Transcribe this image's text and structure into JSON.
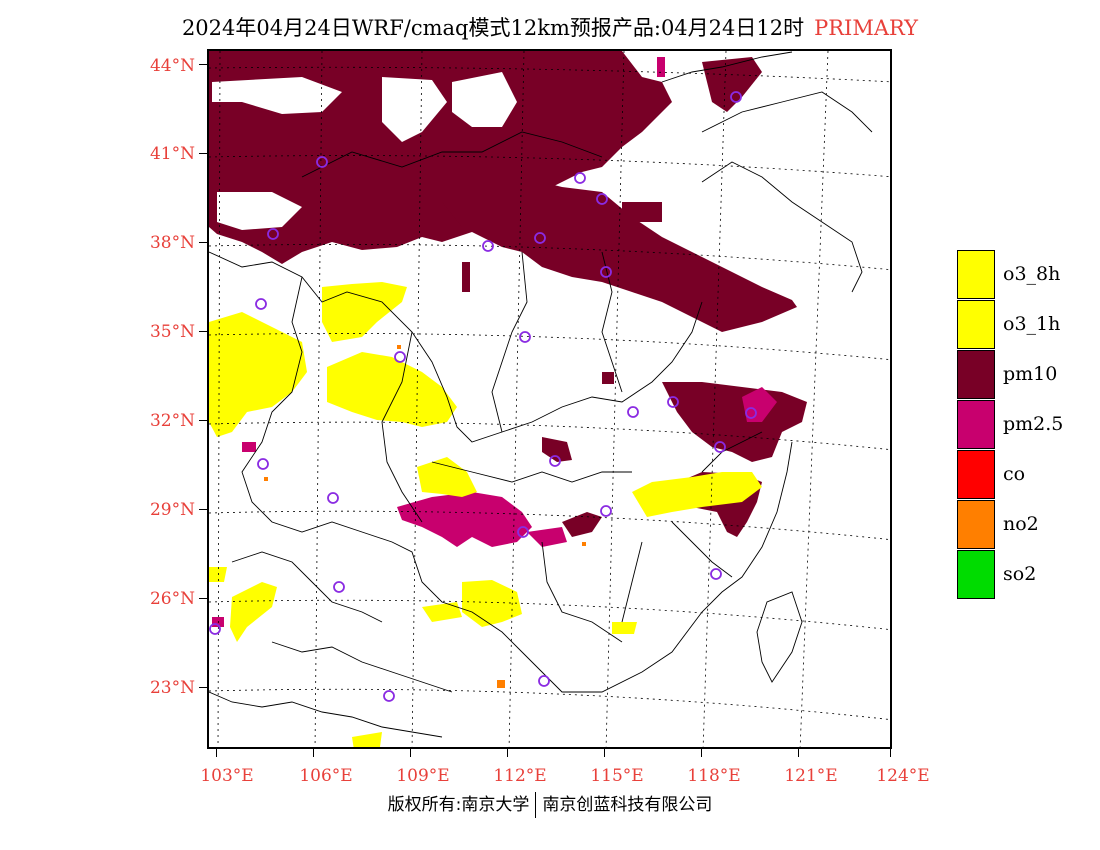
{
  "title": {
    "main": "2024年04月24日WRF/cmaq模式12km预报产品:04月24日12时",
    "tag": "PRIMARY",
    "tag_color": "#e8403a"
  },
  "latitude_labels": [
    "44°N",
    "41°N",
    "38°N",
    "35°N",
    "32°N",
    "29°N",
    "26°N",
    "23°N"
  ],
  "longitude_labels": [
    "103°E",
    "106°E",
    "109°E",
    "112°E",
    "115°E",
    "118°E",
    "121°E",
    "124°E"
  ],
  "legend": [
    {
      "label": "o3_8h",
      "color": "#ffff00"
    },
    {
      "label": "o3_1h",
      "color": "#ffff00"
    },
    {
      "label": "pm10",
      "color": "#780026"
    },
    {
      "label": "pm2.5",
      "color": "#c8006e"
    },
    {
      "label": "co",
      "color": "#ff0000"
    },
    {
      "label": "no2",
      "color": "#ff7f00"
    },
    {
      "label": "so2",
      "color": "#00dc00"
    }
  ],
  "footer": {
    "left": "版权所有:南京大学",
    "right": "南京创蓝科技有限公司"
  },
  "colors": {
    "label_red": "#e8403a",
    "station_marker": "#8a2be2"
  }
}
